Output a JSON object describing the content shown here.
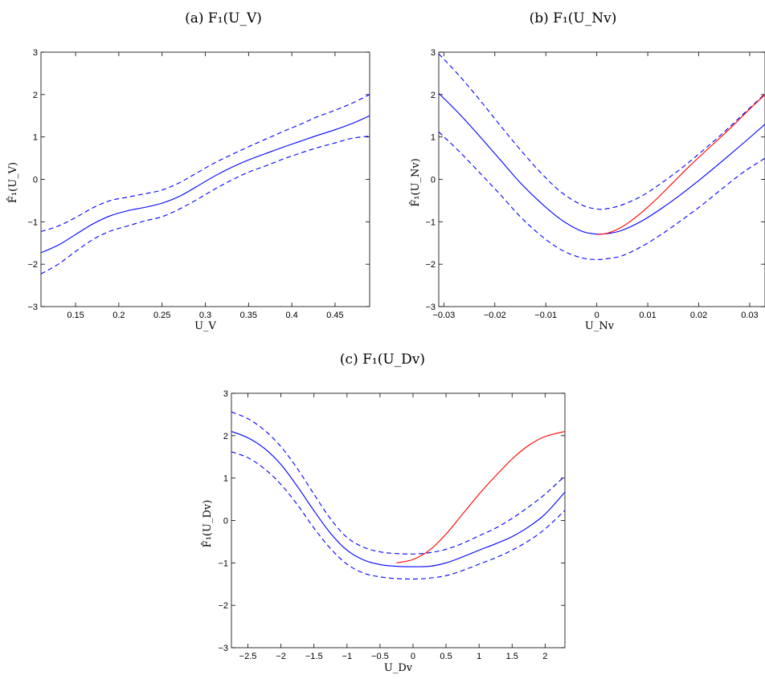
{
  "chart_data": [
    {
      "type": "line",
      "title": "(a) F₁(U_V)",
      "xlabel": "U_V",
      "ylabel": "F̂₁(U_V)",
      "xlim": [
        0.11,
        0.49
      ],
      "ylim": [
        -3,
        3
      ],
      "xticks": [
        0.15,
        0.2,
        0.25,
        0.3,
        0.35,
        0.4,
        0.45
      ],
      "xtick_labels": [
        "0.15",
        "0.2",
        "0.25",
        "0.3",
        "0.35",
        "0.4",
        "0.45"
      ],
      "yticks": [
        -3,
        -2,
        -1,
        0,
        1,
        2,
        3
      ],
      "ytick_labels": [
        "−3",
        "−2",
        "−1",
        "0",
        "1",
        "2",
        "3"
      ],
      "grid": false,
      "series": [
        {
          "color": "#0000ff",
          "style": "solid",
          "x": [
            0.11,
            0.13,
            0.15,
            0.17,
            0.19,
            0.21,
            0.23,
            0.25,
            0.27,
            0.29,
            0.31,
            0.33,
            0.35,
            0.37,
            0.39,
            0.41,
            0.43,
            0.45,
            0.47,
            0.49
          ],
          "y": [
            -1.73,
            -1.55,
            -1.3,
            -1.05,
            -0.86,
            -0.74,
            -0.66,
            -0.56,
            -0.4,
            -0.17,
            0.07,
            0.28,
            0.46,
            0.61,
            0.76,
            0.9,
            1.04,
            1.17,
            1.32,
            1.5
          ]
        },
        {
          "color": "#0000ff",
          "style": "dashed",
          "x": [
            0.11,
            0.13,
            0.15,
            0.17,
            0.19,
            0.21,
            0.23,
            0.25,
            0.27,
            0.29,
            0.31,
            0.33,
            0.35,
            0.37,
            0.39,
            0.41,
            0.43,
            0.45,
            0.47,
            0.49
          ],
          "y": [
            -1.23,
            -1.1,
            -0.9,
            -0.67,
            -0.5,
            -0.42,
            -0.34,
            -0.25,
            -0.08,
            0.15,
            0.38,
            0.58,
            0.77,
            0.95,
            1.13,
            1.3,
            1.48,
            1.63,
            1.8,
            2.0
          ]
        },
        {
          "color": "#0000ff",
          "style": "dashed",
          "x": [
            0.11,
            0.13,
            0.15,
            0.17,
            0.19,
            0.21,
            0.23,
            0.25,
            0.27,
            0.29,
            0.31,
            0.33,
            0.35,
            0.37,
            0.39,
            0.41,
            0.43,
            0.45,
            0.47,
            0.49
          ],
          "y": [
            -2.23,
            -2.0,
            -1.7,
            -1.42,
            -1.22,
            -1.1,
            -0.98,
            -0.88,
            -0.7,
            -0.48,
            -0.24,
            -0.02,
            0.17,
            0.32,
            0.48,
            0.62,
            0.75,
            0.86,
            0.97,
            1.02
          ]
        }
      ]
    },
    {
      "type": "line",
      "title": "(b) F₁(U_Nv)",
      "xlabel": "U_Nv",
      "ylabel": "F̂₁(U_Nv)",
      "xlim": [
        -0.031,
        0.033
      ],
      "ylim": [
        -3,
        3
      ],
      "xticks": [
        -0.03,
        -0.02,
        -0.01,
        0,
        0.01,
        0.02,
        0.03
      ],
      "xtick_labels": [
        "−0.03",
        "−0.02",
        "−0.01",
        "0",
        "0.01",
        "0.02",
        "0.03"
      ],
      "yticks": [
        -3,
        -2,
        -1,
        0,
        1,
        2,
        3
      ],
      "ytick_labels": [
        "−3",
        "−2",
        "−1",
        "0",
        "1",
        "2",
        "3"
      ],
      "grid": false,
      "series": [
        {
          "color": "#0000ff",
          "style": "solid",
          "x": [
            -0.031,
            -0.027,
            -0.023,
            -0.019,
            -0.015,
            -0.011,
            -0.007,
            -0.003,
            0.0,
            0.002,
            0.005,
            0.009,
            0.013,
            0.017,
            0.021,
            0.025,
            0.029,
            0.033
          ],
          "y": [
            2.03,
            1.55,
            1.02,
            0.47,
            -0.08,
            -0.55,
            -0.95,
            -1.22,
            -1.29,
            -1.28,
            -1.2,
            -0.97,
            -0.66,
            -0.31,
            0.07,
            0.47,
            0.88,
            1.3
          ]
        },
        {
          "color": "#0000ff",
          "style": "dashed",
          "x": [
            -0.031,
            -0.027,
            -0.023,
            -0.019,
            -0.015,
            -0.011,
            -0.007,
            -0.003,
            0.0,
            0.002,
            0.005,
            0.009,
            0.013,
            0.017,
            0.021,
            0.025,
            0.029,
            0.033
          ],
          "y": [
            2.96,
            2.45,
            1.88,
            1.28,
            0.7,
            0.16,
            -0.3,
            -0.6,
            -0.7,
            -0.69,
            -0.6,
            -0.38,
            -0.06,
            0.3,
            0.7,
            1.12,
            1.57,
            2.02
          ]
        },
        {
          "color": "#0000ff",
          "style": "dashed",
          "x": [
            -0.031,
            -0.027,
            -0.023,
            -0.019,
            -0.015,
            -0.011,
            -0.007,
            -0.003,
            0.0,
            0.002,
            0.005,
            0.009,
            0.013,
            0.017,
            0.021,
            0.025,
            0.029,
            0.033
          ],
          "y": [
            1.12,
            0.66,
            0.16,
            -0.35,
            -0.88,
            -1.32,
            -1.66,
            -1.85,
            -1.89,
            -1.87,
            -1.8,
            -1.57,
            -1.27,
            -0.93,
            -0.57,
            -0.18,
            0.19,
            0.5
          ]
        },
        {
          "color": "#ff0000",
          "style": "solid",
          "x": [
            0.0,
            0.002,
            0.004,
            0.006,
            0.009,
            0.012,
            0.015,
            0.018,
            0.021,
            0.024,
            0.027,
            0.03,
            0.033
          ],
          "y": [
            -1.3,
            -1.27,
            -1.18,
            -1.04,
            -0.76,
            -0.43,
            -0.07,
            0.29,
            0.63,
            0.96,
            1.3,
            1.66,
            2.0
          ]
        }
      ]
    },
    {
      "type": "line",
      "title": "(c) F₁(U_Dv)",
      "xlabel": "U_Dv",
      "ylabel": "F̂₁(U_Dv)",
      "xlim": [
        -2.75,
        2.3
      ],
      "ylim": [
        -3,
        3
      ],
      "xticks": [
        -2.5,
        -2,
        -1.5,
        -1,
        -0.5,
        0,
        0.5,
        1,
        1.5,
        2
      ],
      "xtick_labels": [
        "−2.5",
        "−2",
        "−1.5",
        "−1",
        "−0.5",
        "0",
        "0.5",
        "1",
        "1.5",
        "2"
      ],
      "yticks": [
        -3,
        -2,
        -1,
        0,
        1,
        2,
        3
      ],
      "ytick_labels": [
        "−3",
        "−2",
        "−1",
        "0",
        "1",
        "2",
        "3"
      ],
      "grid": false,
      "series": [
        {
          "color": "#0000ff",
          "style": "solid",
          "x": [
            -2.75,
            -2.5,
            -2.25,
            -2.0,
            -1.75,
            -1.5,
            -1.25,
            -1.0,
            -0.75,
            -0.5,
            -0.25,
            0.0,
            0.25,
            0.5,
            0.75,
            1.0,
            1.25,
            1.5,
            1.75,
            2.0,
            2.3
          ],
          "y": [
            2.1,
            1.95,
            1.7,
            1.32,
            0.8,
            0.23,
            -0.3,
            -0.7,
            -0.93,
            -1.04,
            -1.08,
            -1.09,
            -1.08,
            -1.0,
            -0.86,
            -0.7,
            -0.55,
            -0.38,
            -0.15,
            0.15,
            0.67
          ]
        },
        {
          "color": "#0000ff",
          "style": "dashed",
          "x": [
            -2.75,
            -2.5,
            -2.25,
            -2.0,
            -1.75,
            -1.5,
            -1.25,
            -1.0,
            -0.75,
            -0.5,
            -0.25,
            0.0,
            0.25,
            0.5,
            0.75,
            1.0,
            1.25,
            1.5,
            1.75,
            2.0,
            2.3
          ],
          "y": [
            2.56,
            2.4,
            2.13,
            1.74,
            1.22,
            0.62,
            0.04,
            -0.4,
            -0.63,
            -0.74,
            -0.78,
            -0.79,
            -0.76,
            -0.68,
            -0.54,
            -0.36,
            -0.18,
            0.05,
            0.32,
            0.62,
            1.05
          ]
        },
        {
          "color": "#0000ff",
          "style": "dashed",
          "x": [
            -2.75,
            -2.5,
            -2.25,
            -2.0,
            -1.75,
            -1.5,
            -1.25,
            -1.0,
            -0.75,
            -0.5,
            -0.25,
            0.0,
            0.25,
            0.5,
            0.75,
            1.0,
            1.25,
            1.5,
            1.75,
            2.0,
            2.3
          ],
          "y": [
            1.62,
            1.48,
            1.22,
            0.85,
            0.37,
            -0.18,
            -0.66,
            -1.03,
            -1.24,
            -1.33,
            -1.37,
            -1.38,
            -1.36,
            -1.3,
            -1.18,
            -1.03,
            -0.88,
            -0.7,
            -0.48,
            -0.2,
            0.24
          ]
        },
        {
          "color": "#ff0000",
          "style": "solid",
          "x": [
            -0.25,
            0.0,
            0.25,
            0.5,
            0.75,
            1.0,
            1.25,
            1.5,
            1.75,
            2.0,
            2.3
          ],
          "y": [
            -1.0,
            -0.92,
            -0.7,
            -0.32,
            0.15,
            0.62,
            1.05,
            1.45,
            1.77,
            1.98,
            2.1
          ]
        }
      ]
    }
  ]
}
